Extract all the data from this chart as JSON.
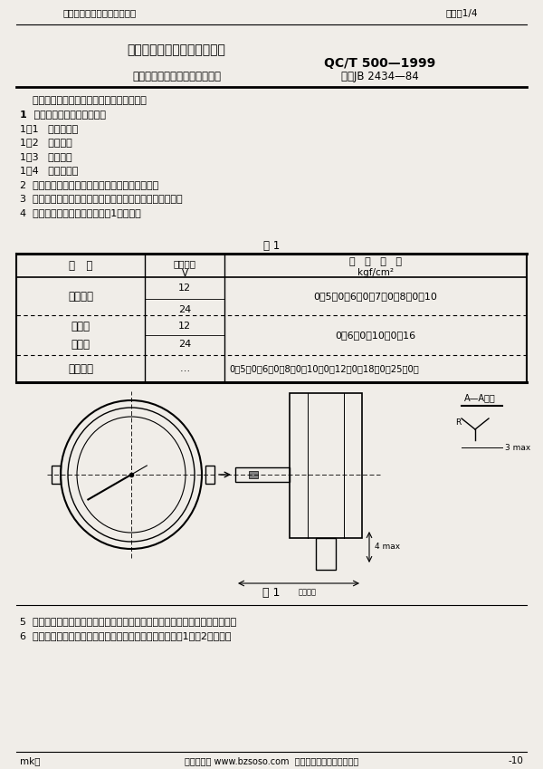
{
  "bg_color": "#f0ede8",
  "header_text": "中华人民共和国汽车行业标准",
  "header_right": "页码：1/4",
  "title_main": "中华人民共和国汽车行业标准",
  "title_std": "QC/T 500—1999",
  "title_sub": "汽车用压力表型式、参数和尺寸",
  "title_replace": "代替JB 2434—84",
  "body_lines": [
    "    本标准适用于汽车压力表指示器及传感器。",
    "1  压力表指示器的结构型式：",
    "1．1   双金属式；",
    "1．2   电磁式；",
    "1．3   动磁式；",
    "1．4   弹簧管式。",
    "2  双金属式压力表传感器的结构型式为双金属式。",
    "3  电磁式、动磁式压力表传感器的结构型式为可变电阱式。",
    "4  压力表指示器的参数应符合表1的规定。"
  ],
  "table_title": "表 1",
  "row1_type": "双金属式",
  "row2a_type": "电磁式",
  "row2b_type": "动磁式",
  "row3_type": "弹簧管式",
  "row1_range": "0～5；0～6；0～7；0～8；0～10",
  "row2_range": "0～6；0～10；0～16",
  "row3_range": "0～5；0～6；0～8；0～10；0～12；0～18；0～25；0～",
  "fig_label": "图 1",
  "footer_lines": [
    "5  双金属式、电磁式、动磁式压力表传感器的参数应与压力表指示器参数一致。",
    "6  双金属式、电磁式、动磁式压力表指示器的尺寸应符合图1及表2的规定。"
  ],
  "bottom_left": "mk：",
  "bottom_center": "标准搜狗网 www.bzsoso.com  各类标准行业资料免费下载",
  "bottom_right": "-10"
}
